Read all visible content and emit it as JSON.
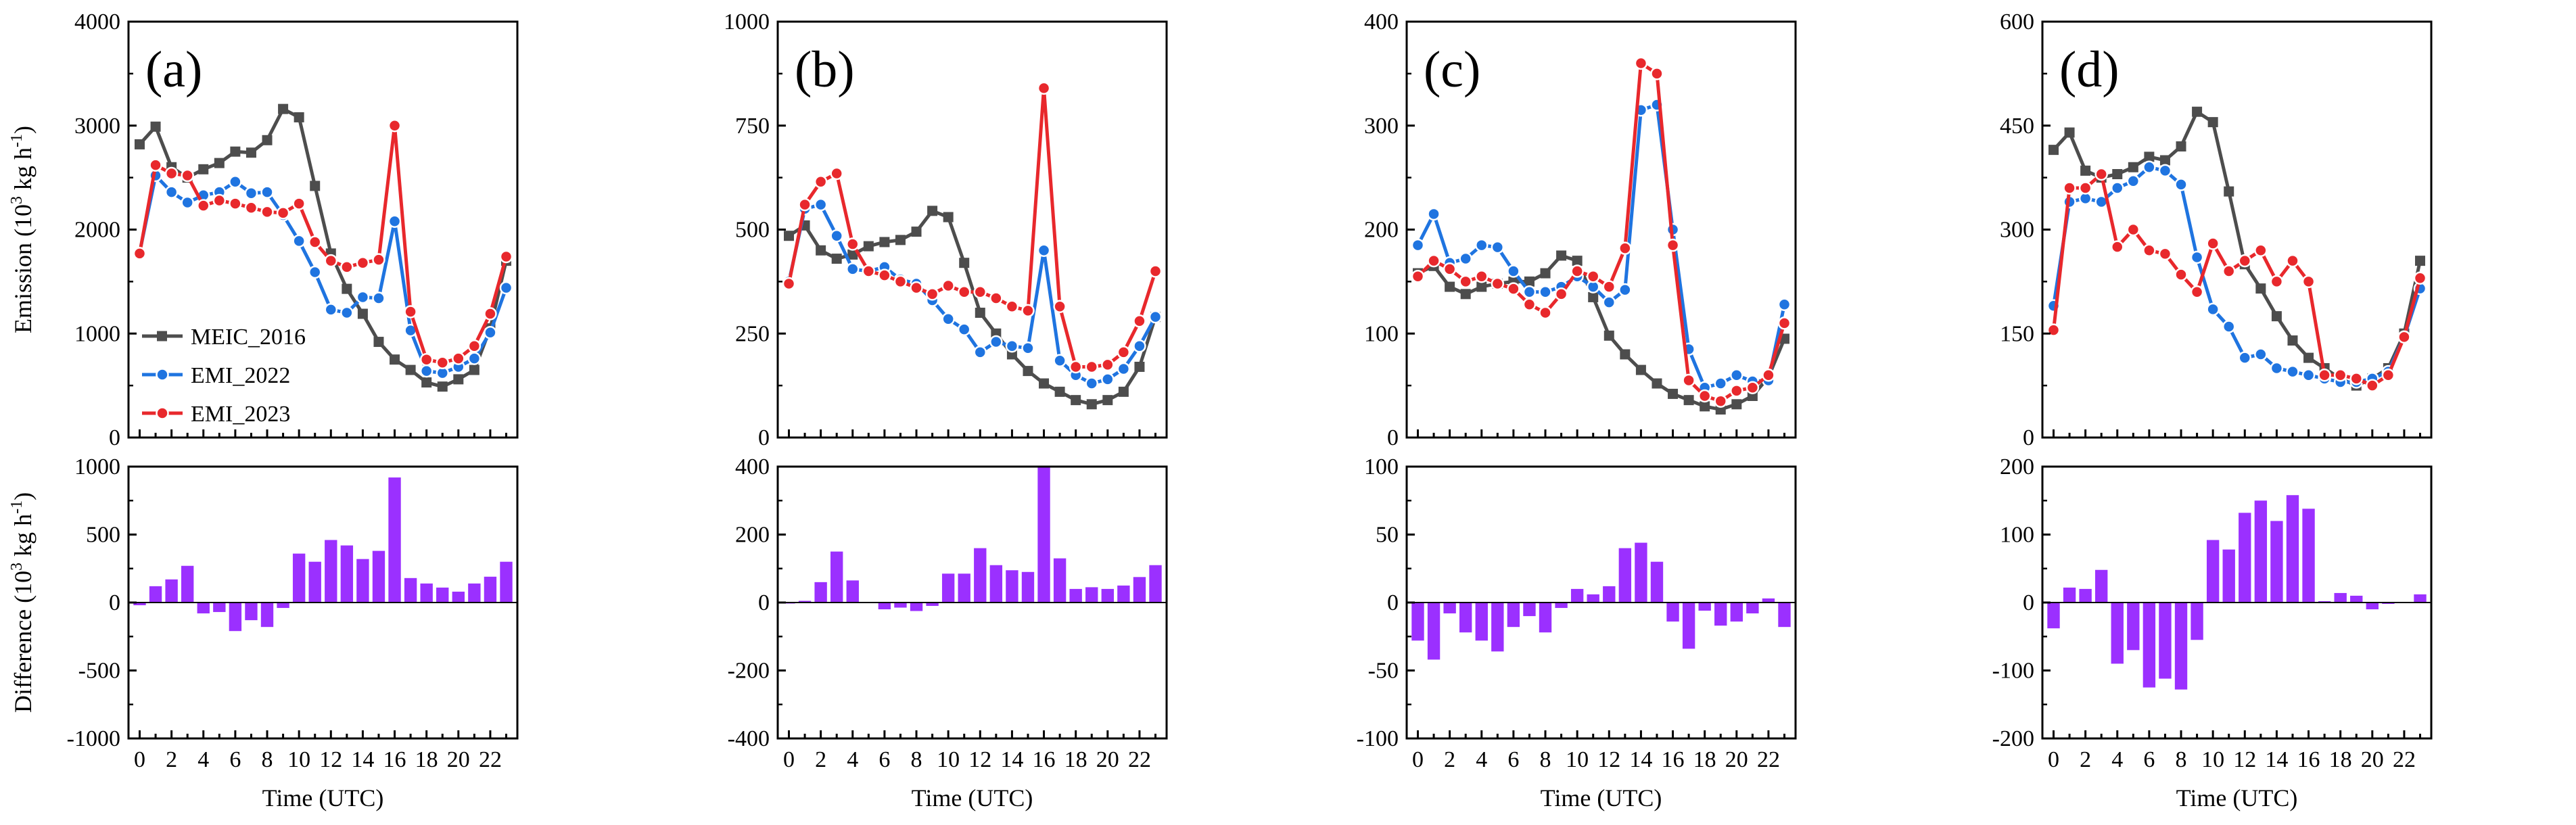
{
  "figure": {
    "xlabel": "Time (UTC)",
    "ylabel_top_prefix": "Emission (10",
    "ylabel_bottom_prefix": "Difference (10",
    "ylabel_exponent": "3",
    "ylabel_unit": " kg h",
    "ylabel_unit_exponent": "-1",
    "ylabel_suffix": ")",
    "legend": [
      {
        "name": "MEIC_2016",
        "color": "#4d4d4d",
        "marker": "square"
      },
      {
        "name": "EMI_2022",
        "color": "#1f74e0",
        "marker": "circle"
      },
      {
        "name": "EMI_2023",
        "color": "#e8282c",
        "marker": "circle"
      }
    ]
  },
  "chart_data": [
    {
      "panel": "(a)",
      "type": "line",
      "x": [
        0,
        1,
        2,
        3,
        4,
        5,
        6,
        7,
        8,
        9,
        10,
        11,
        12,
        13,
        14,
        15,
        16,
        17,
        18,
        19,
        20,
        21,
        22,
        23
      ],
      "xticks": [
        "0",
        "2",
        "4",
        "6",
        "8",
        "10",
        "12",
        "14",
        "16",
        "18",
        "20",
        "22"
      ],
      "ylim": [
        0,
        4000
      ],
      "yticks": [
        "0",
        "1000",
        "2000",
        "3000",
        "4000"
      ],
      "series": [
        {
          "name": "MEIC_2016",
          "values": [
            2820,
            2990,
            2600,
            2500,
            2580,
            2640,
            2750,
            2740,
            2860,
            3160,
            3080,
            2420,
            1770,
            1430,
            1190,
            920,
            750,
            650,
            530,
            490,
            560,
            650,
            1050,
            1700
          ]
        },
        {
          "name": "EMI_2022",
          "values": [
            1780,
            2520,
            2360,
            2260,
            2330,
            2360,
            2460,
            2350,
            2360,
            2140,
            1890,
            1590,
            1230,
            1200,
            1350,
            1340,
            2080,
            1030,
            640,
            620,
            680,
            760,
            1010,
            1440
          ]
        },
        {
          "name": "EMI_2023",
          "values": [
            1770,
            2620,
            2540,
            2520,
            2230,
            2280,
            2250,
            2210,
            2170,
            2160,
            2250,
            1880,
            1700,
            1640,
            1680,
            1710,
            3000,
            1210,
            750,
            720,
            760,
            880,
            1190,
            1740
          ]
        }
      ],
      "diff": {
        "type": "bar",
        "ylim": [
          -1000,
          1000
        ],
        "yticks": [
          "-1000",
          "-500",
          "0",
          "500",
          "1000"
        ],
        "values": [
          -20,
          120,
          170,
          270,
          -80,
          -70,
          -210,
          -130,
          -180,
          -40,
          360,
          300,
          460,
          420,
          320,
          380,
          920,
          180,
          140,
          110,
          80,
          140,
          190,
          300
        ]
      }
    },
    {
      "panel": "(b)",
      "type": "line",
      "x": [
        0,
        1,
        2,
        3,
        4,
        5,
        6,
        7,
        8,
        9,
        10,
        11,
        12,
        13,
        14,
        15,
        16,
        17,
        18,
        19,
        20,
        21,
        22,
        23
      ],
      "xticks": [
        "0",
        "2",
        "4",
        "6",
        "8",
        "10",
        "12",
        "14",
        "16",
        "18",
        "20",
        "22"
      ],
      "ylim": [
        0,
        1000
      ],
      "yticks": [
        "0",
        "250",
        "500",
        "750",
        "1000"
      ],
      "series": [
        {
          "name": "MEIC_2016",
          "values": [
            485,
            510,
            450,
            430,
            440,
            460,
            470,
            475,
            495,
            545,
            530,
            420,
            300,
            250,
            200,
            160,
            130,
            110,
            90,
            80,
            90,
            110,
            170,
            290
          ]
        },
        {
          "name": "EMI_2022",
          "values": [
            375,
            550,
            560,
            485,
            405,
            400,
            410,
            380,
            370,
            330,
            285,
            260,
            205,
            230,
            220,
            215,
            450,
            185,
            150,
            130,
            140,
            165,
            220,
            290
          ]
        },
        {
          "name": "EMI_2023",
          "values": [
            370,
            560,
            615,
            635,
            465,
            400,
            390,
            375,
            360,
            345,
            365,
            350,
            350,
            335,
            315,
            305,
            840,
            315,
            170,
            170,
            175,
            205,
            280,
            400
          ]
        }
      ],
      "diff": {
        "type": "bar",
        "ylim": [
          -400,
          400
        ],
        "yticks": [
          "-400",
          "-200",
          "0",
          "200",
          "400"
        ],
        "values": [
          -3,
          5,
          60,
          150,
          65,
          0,
          -20,
          -15,
          -25,
          -10,
          85,
          85,
          160,
          110,
          95,
          90,
          400,
          130,
          40,
          45,
          40,
          50,
          75,
          110
        ]
      }
    },
    {
      "panel": "(c)",
      "type": "line",
      "x": [
        0,
        1,
        2,
        3,
        4,
        5,
        6,
        7,
        8,
        9,
        10,
        11,
        12,
        13,
        14,
        15,
        16,
        17,
        18,
        19,
        20,
        21,
        22,
        23
      ],
      "xticks": [
        "0",
        "2",
        "4",
        "6",
        "8",
        "10",
        "12",
        "14",
        "16",
        "18",
        "20",
        "22"
      ],
      "ylim": [
        0,
        400
      ],
      "yticks": [
        "0",
        "100",
        "200",
        "300",
        "400"
      ],
      "series": [
        {
          "name": "MEIC_2016",
          "values": [
            158,
            165,
            145,
            138,
            145,
            148,
            150,
            150,
            158,
            175,
            170,
            135,
            98,
            80,
            65,
            52,
            42,
            36,
            30,
            27,
            32,
            40,
            58,
            95
          ]
        },
        {
          "name": "EMI_2022",
          "values": [
            185,
            215,
            168,
            172,
            185,
            183,
            160,
            140,
            140,
            145,
            155,
            145,
            130,
            142,
            315,
            320,
            200,
            85,
            48,
            52,
            60,
            54,
            55,
            128
          ]
        },
        {
          "name": "EMI_2023",
          "values": [
            155,
            170,
            162,
            150,
            155,
            148,
            143,
            128,
            120,
            138,
            160,
            155,
            145,
            182,
            360,
            350,
            185,
            55,
            40,
            35,
            45,
            48,
            60,
            110
          ]
        }
      ],
      "diff": {
        "type": "bar",
        "ylim": [
          -100,
          100
        ],
        "yticks": [
          "-100",
          "-50",
          "0",
          "50",
          "100"
        ],
        "values": [
          -28,
          -42,
          -8,
          -22,
          -28,
          -36,
          -18,
          -10,
          -22,
          -4,
          10,
          6,
          12,
          40,
          44,
          30,
          -14,
          -34,
          -6,
          -17,
          -14,
          -8,
          3,
          -18
        ]
      }
    },
    {
      "panel": "(d)",
      "type": "line",
      "x": [
        0,
        1,
        2,
        3,
        4,
        5,
        6,
        7,
        8,
        9,
        10,
        11,
        12,
        13,
        14,
        15,
        16,
        17,
        18,
        19,
        20,
        21,
        22,
        23
      ],
      "xticks": [
        "0",
        "2",
        "4",
        "6",
        "8",
        "10",
        "12",
        "14",
        "16",
        "18",
        "20",
        "22"
      ],
      "ylim": [
        0,
        600
      ],
      "yticks": [
        "0",
        "150",
        "300",
        "450",
        "600"
      ],
      "series": [
        {
          "name": "MEIC_2016",
          "values": [
            415,
            440,
            385,
            375,
            380,
            390,
            405,
            400,
            420,
            470,
            455,
            355,
            250,
            215,
            175,
            140,
            115,
            100,
            85,
            75,
            85,
            100,
            150,
            255
          ]
        },
        {
          "name": "EMI_2022",
          "values": [
            190,
            340,
            345,
            340,
            360,
            370,
            390,
            385,
            365,
            260,
            185,
            160,
            115,
            120,
            100,
            95,
            90,
            85,
            80,
            80,
            85,
            95,
            145,
            215
          ]
        },
        {
          "name": "EMI_2023",
          "values": [
            155,
            360,
            360,
            380,
            275,
            300,
            270,
            265,
            235,
            210,
            280,
            240,
            255,
            270,
            225,
            255,
            225,
            90,
            90,
            85,
            75,
            90,
            145,
            230
          ]
        }
      ],
      "diff": {
        "type": "bar",
        "ylim": [
          -200,
          200
        ],
        "yticks": [
          "-200",
          "-100",
          "0",
          "100",
          "200"
        ],
        "values": [
          -38,
          22,
          20,
          48,
          -90,
          -70,
          -125,
          -112,
          -128,
          -55,
          92,
          78,
          132,
          150,
          120,
          158,
          138,
          2,
          14,
          10,
          -10,
          -2,
          0,
          12
        ]
      }
    }
  ]
}
